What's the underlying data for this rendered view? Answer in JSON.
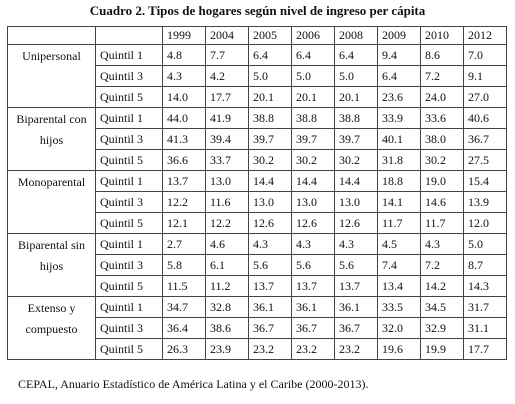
{
  "title": "Cuadro 2. Tipos de hogares según nivel de ingreso per cápita",
  "table": {
    "years": [
      "1999",
      "2004",
      "2005",
      "2006",
      "2008",
      "2009",
      "2010",
      "2012"
    ],
    "groups": [
      {
        "label": "Unipersonal",
        "rows": [
          {
            "label": "Quintil 1",
            "values": [
              "4.8",
              "7.7",
              "6.4",
              "6.4",
              "6.4",
              "9.4",
              "8.6",
              "7.0"
            ]
          },
          {
            "label": "Quintil 3",
            "values": [
              "4.3",
              "4.2",
              "5.0",
              "5.0",
              "5.0",
              "6.4",
              "7.2",
              "9.1"
            ]
          },
          {
            "label": "Quintil 5",
            "values": [
              "14.0",
              "17.7",
              "20.1",
              "20.1",
              "20.1",
              "23.6",
              "24.0",
              "27.0"
            ]
          }
        ]
      },
      {
        "label": "Biparental con hijos",
        "rows": [
          {
            "label": "Quintil 1",
            "values": [
              "44.0",
              "41.9",
              "38.8",
              "38.8",
              "38.8",
              "33.9",
              "33.6",
              "40.6"
            ]
          },
          {
            "label": "Quintil 3",
            "values": [
              "41.3",
              "39.4",
              "39.7",
              "39.7",
              "39.7",
              "40.1",
              "38.0",
              "36.7"
            ]
          },
          {
            "label": "Quintil 5",
            "values": [
              "36.6",
              "33.7",
              "30.2",
              "30.2",
              "30.2",
              "31.8",
              "30.2",
              "27.5"
            ]
          }
        ]
      },
      {
        "label": "Monoparental",
        "rows": [
          {
            "label": "Quintil 1",
            "values": [
              "13.7",
              "13.0",
              "14.4",
              "14.4",
              "14.4",
              "18.8",
              "19.0",
              "15.4"
            ]
          },
          {
            "label": "Quintil 3",
            "values": [
              "12.2",
              "11.6",
              "13.0",
              "13.0",
              "13.0",
              "14.1",
              "14.6",
              "13.9"
            ]
          },
          {
            "label": "Quintil 5",
            "values": [
              "12.1",
              "12.2",
              "12.6",
              "12.6",
              "12.6",
              "11.7",
              "11.7",
              "12.0"
            ]
          }
        ]
      },
      {
        "label": "Biparental sin hijos",
        "rows": [
          {
            "label": "Quintil 1",
            "values": [
              "2.7",
              "4.6",
              "4.3",
              "4.3",
              "4.3",
              "4.5",
              "4.3",
              "5.0"
            ]
          },
          {
            "label": "Quintil 3",
            "values": [
              "5.8",
              "6.1",
              "5.6",
              "5.6",
              "5.6",
              "7.4",
              "7.2",
              "8.7"
            ]
          },
          {
            "label": "Quintil 5",
            "values": [
              "11.5",
              "11.2",
              "13.7",
              "13.7",
              "13.7",
              "13.4",
              "14.2",
              "14.3"
            ]
          }
        ]
      },
      {
        "label": "Extenso y compuesto",
        "rows": [
          {
            "label": "Quintil 1",
            "values": [
              "34.7",
              "32.8",
              "36.1",
              "36.1",
              "36.1",
              "33.5",
              "34.5",
              "31.7"
            ]
          },
          {
            "label": "Quintil 3",
            "values": [
              "36.4",
              "38.6",
              "36.7",
              "36.7",
              "36.7",
              "32.0",
              "32.9",
              "31.1"
            ]
          },
          {
            "label": "Quintil 5",
            "values": [
              "26.3",
              "23.9",
              "23.2",
              "23.2",
              "23.2",
              "19.6",
              "19.9",
              "17.7"
            ]
          }
        ]
      }
    ]
  },
  "source": "CEPAL, Anuario Estadístico de América Latina y el Caribe (2000-2013)."
}
